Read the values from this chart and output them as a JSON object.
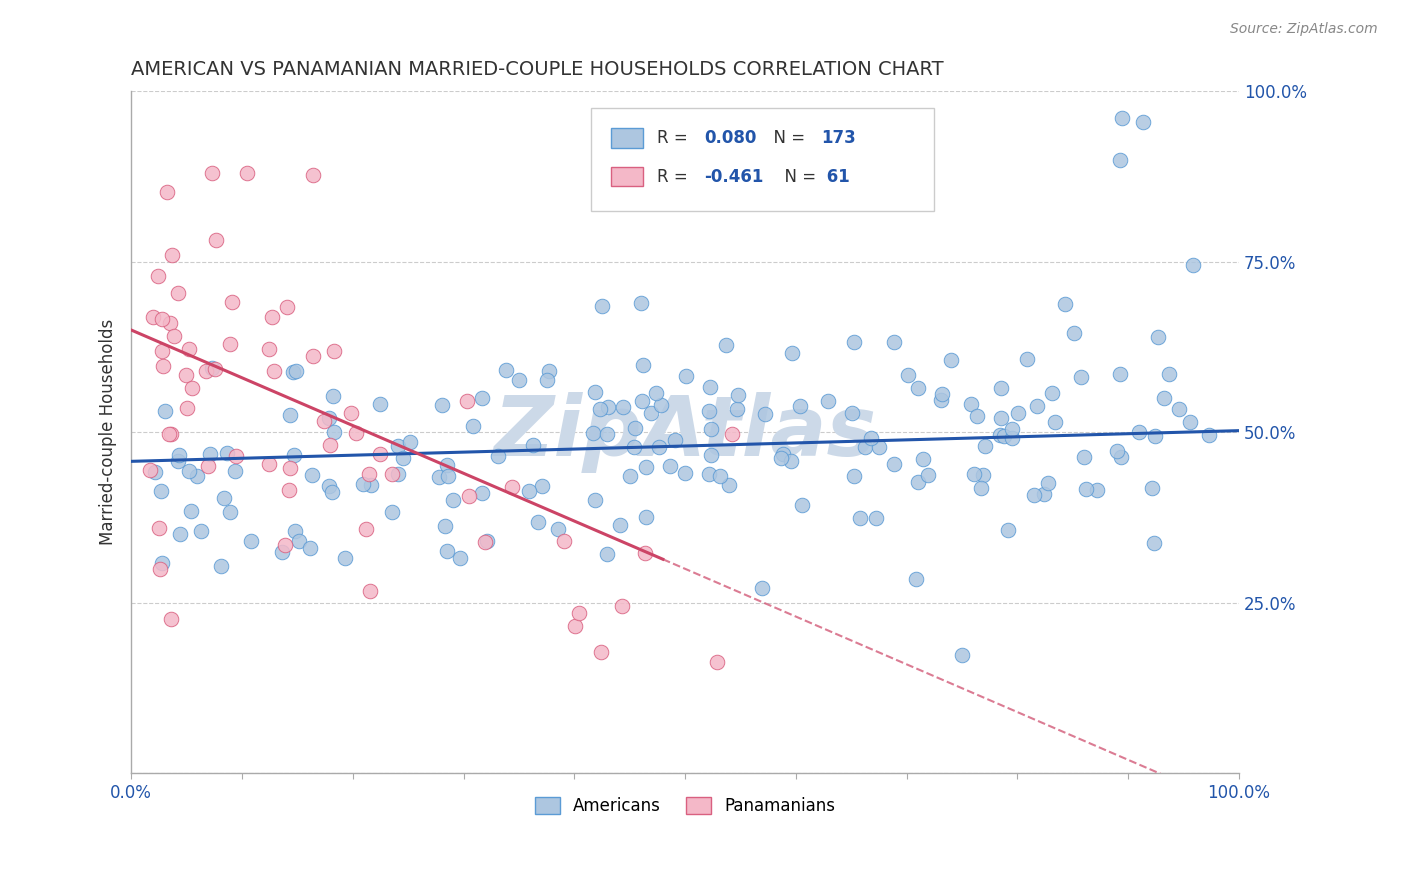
{
  "title": "AMERICAN VS PANAMANIAN MARRIED-COUPLE HOUSEHOLDS CORRELATION CHART",
  "source_text": "Source: ZipAtlas.com",
  "ylabel": "Married-couple Households",
  "xlim": [
    0,
    100
  ],
  "ylim": [
    0,
    100
  ],
  "background_color": "#ffffff",
  "grid_color": "#cccccc",
  "watermark_text": "ZipAtlas",
  "watermark_color": "#ccd9e8",
  "american_color": "#adc6e0",
  "american_edge_color": "#5b9bd5",
  "panamanian_color": "#f4b8c8",
  "panamanian_edge_color": "#d96080",
  "american_line_color": "#2255aa",
  "panamanian_line_color": "#cc4466",
  "R_american": 0.08,
  "N_american": 173,
  "R_panamanian": -0.461,
  "N_panamanian": 61,
  "american_intercept": 48.0,
  "american_slope": 0.045,
  "panamanian_intercept": 65.0,
  "panamanian_slope": -0.7,
  "pan_solid_end": 48,
  "tick_color": "#2255aa",
  "axis_color": "#aaaaaa",
  "title_color": "#333333",
  "source_color": "#888888"
}
